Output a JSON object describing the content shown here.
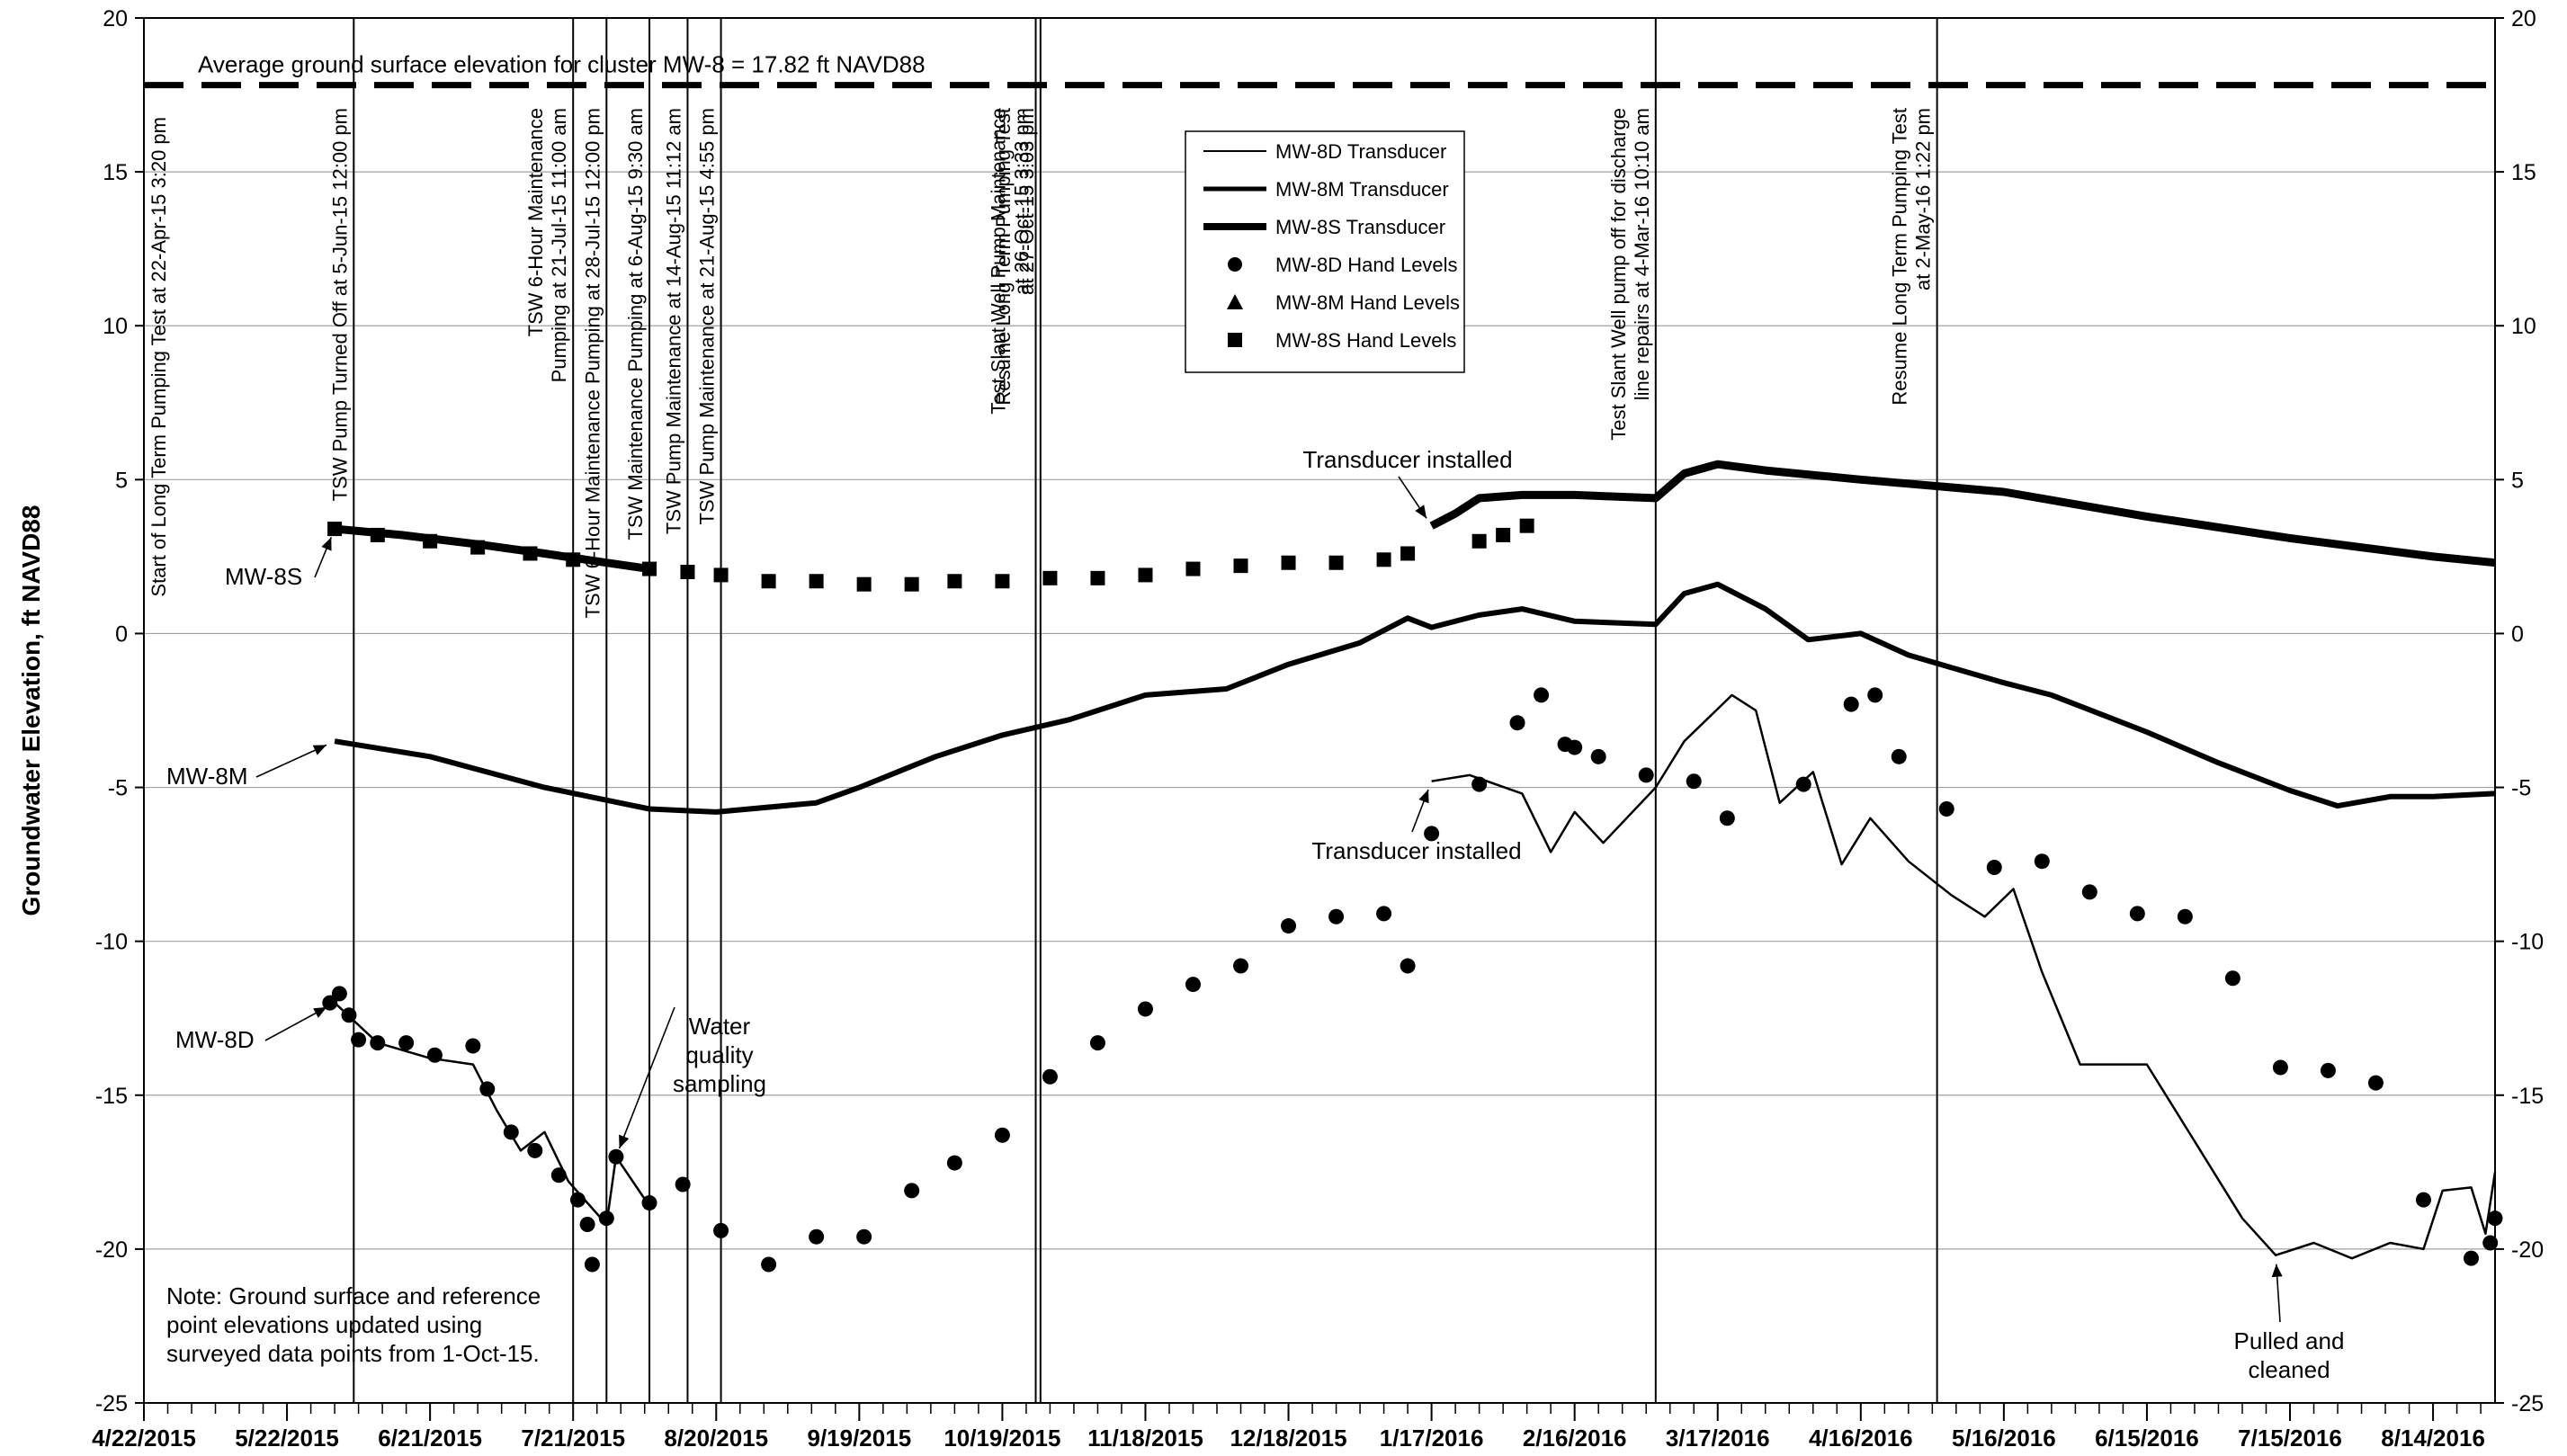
{
  "chart_data": {
    "type": "line",
    "ylabel": "Groundwater Elevation, ft NAVD88",
    "ylim": [
      -25,
      20
    ],
    "yticks": [
      20,
      15,
      10,
      5,
      0,
      -5,
      -10,
      -15,
      -20,
      -25
    ],
    "xlim": [
      "2015-04-22",
      "2016-08-27"
    ],
    "x_tick_labels": [
      "4/22/2015",
      "5/22/2015",
      "6/21/2015",
      "7/21/2015",
      "8/20/2015",
      "9/19/2015",
      "10/19/2015",
      "11/18/2015",
      "12/18/2015",
      "1/17/2016",
      "2/16/2016",
      "3/17/2016",
      "4/16/2016",
      "5/16/2016",
      "6/15/2016",
      "7/15/2016",
      "8/14/2016"
    ],
    "grid": "horizontal",
    "legend_position": "top-center",
    "ground_surface": {
      "value": 17.82,
      "label": "Average ground surface elevation for cluster MW-8 = 17.82 ft NAVD88"
    },
    "events": [
      {
        "date": "2015-04-22",
        "label": "Start of Long Term Pumping Test at 22-Apr-15 3:20 pm",
        "line": false
      },
      {
        "date": "2015-06-05",
        "label": "TSW Pump Turned Off at 5-Jun-15 12:00 pm",
        "line": true
      },
      {
        "date": "2015-07-21",
        "label": "TSW 6-Hour Maintenance|Pumping at 21-Jul-15 11:00 am",
        "line": true
      },
      {
        "date": "2015-07-28",
        "label": "TSW 6-Hour Maintenance Pumping at 28-Jul-15 12:00 pm",
        "line": true
      },
      {
        "date": "2015-08-06",
        "label": "TSW Maintenance Pumping at 6-Aug-15 9:30 am",
        "line": true
      },
      {
        "date": "2015-08-14",
        "label": "TSW Pump Maintenance at 14-Aug-15 11:12 am",
        "line": true
      },
      {
        "date": "2015-08-21",
        "label": "TSW Pump Maintenance at 21-Aug-15 4:55 pm",
        "line": true
      },
      {
        "date": "2015-10-26",
        "label": "Test Slant Well Pump Maintenance|at 26-Oct-15 3:33 pm",
        "line": true
      },
      {
        "date": "2015-10-27",
        "label": "Resume Long Term Pumping Test|at 27-Oct-15 3:03 pm",
        "line": true
      },
      {
        "date": "2016-03-04",
        "label": "Test Slant Well pump off for discharge|line repairs at 4-Mar-16 10:10 am",
        "line": true
      },
      {
        "date": "2016-05-02",
        "label": "Resume Long Term Pumping Test|at 2-May-16 1:22 pm",
        "line": true
      }
    ],
    "legend": [
      {
        "name": "MW-8D Transducer",
        "marker": "thin-line"
      },
      {
        "name": "MW-8M Transducer",
        "marker": "medium-line"
      },
      {
        "name": "MW-8S Transducer",
        "marker": "thick-line"
      },
      {
        "name": "MW-8D Hand Levels",
        "marker": "circle"
      },
      {
        "name": "MW-8M Hand Levels",
        "marker": "triangle"
      },
      {
        "name": "MW-8S Hand Levels",
        "marker": "square"
      }
    ],
    "series": [
      {
        "name": "MW-8S Transducer",
        "style": "thick-line",
        "segments": [
          [
            [
              "2015-06-01",
              3.4
            ],
            [
              "2015-06-15",
              3.2
            ],
            [
              "2015-07-01",
              2.9
            ],
            [
              "2015-07-15",
              2.6
            ],
            [
              "2015-07-28",
              2.3
            ],
            [
              "2015-08-06",
              2.1
            ]
          ],
          [
            [
              "2016-01-17",
              3.5
            ],
            [
              "2016-01-22",
              3.9
            ],
            [
              "2016-01-27",
              4.4
            ],
            [
              "2016-02-05",
              4.5
            ],
            [
              "2016-02-16",
              4.5
            ],
            [
              "2016-03-04",
              4.4
            ],
            [
              "2016-03-10",
              5.2
            ],
            [
              "2016-03-17",
              5.5
            ],
            [
              "2016-03-27",
              5.3
            ],
            [
              "2016-04-16",
              5.0
            ],
            [
              "2016-05-16",
              4.6
            ],
            [
              "2016-06-15",
              3.8
            ],
            [
              "2016-07-15",
              3.1
            ],
            [
              "2016-08-14",
              2.5
            ],
            [
              "2016-08-27",
              2.3
            ]
          ]
        ]
      },
      {
        "name": "MW-8M Transducer",
        "style": "medium-line",
        "segments": [
          [
            [
              "2015-06-01",
              -3.5
            ],
            [
              "2015-06-21",
              -4.0
            ],
            [
              "2015-07-15",
              -5.0
            ],
            [
              "2015-08-06",
              -5.7
            ],
            [
              "2015-08-20",
              -5.8
            ],
            [
              "2015-09-10",
              -5.5
            ],
            [
              "2015-09-19",
              -5.0
            ],
            [
              "2015-10-05",
              -4.0
            ],
            [
              "2015-10-19",
              -3.3
            ],
            [
              "2015-11-02",
              -2.8
            ],
            [
              "2015-11-18",
              -2.0
            ],
            [
              "2015-12-05",
              -1.8
            ],
            [
              "2015-12-18",
              -1.0
            ],
            [
              "2016-01-02",
              -0.3
            ],
            [
              "2016-01-12",
              0.5
            ],
            [
              "2016-01-17",
              0.2
            ],
            [
              "2016-01-27",
              0.6
            ],
            [
              "2016-02-05",
              0.8
            ],
            [
              "2016-02-16",
              0.4
            ],
            [
              "2016-03-04",
              0.3
            ],
            [
              "2016-03-10",
              1.3
            ],
            [
              "2016-03-17",
              1.6
            ],
            [
              "2016-03-27",
              0.8
            ],
            [
              "2016-04-05",
              -0.2
            ],
            [
              "2016-04-16",
              0.0
            ],
            [
              "2016-04-26",
              -0.7
            ],
            [
              "2016-05-16",
              -1.6
            ],
            [
              "2016-05-26",
              -2.0
            ],
            [
              "2016-06-15",
              -3.2
            ],
            [
              "2016-06-30",
              -4.2
            ],
            [
              "2016-07-15",
              -5.1
            ],
            [
              "2016-07-25",
              -5.6
            ],
            [
              "2016-08-05",
              -5.3
            ],
            [
              "2016-08-14",
              -5.3
            ],
            [
              "2016-08-27",
              -5.2
            ]
          ]
        ]
      },
      {
        "name": "MW-8D Transducer",
        "style": "thin-line",
        "segments": [
          [
            [
              "2015-06-01",
              -12.0
            ],
            [
              "2015-06-10",
              -13.3
            ],
            [
              "2015-06-21",
              -13.8
            ],
            [
              "2015-06-30",
              -14.0
            ],
            [
              "2015-07-05",
              -15.5
            ],
            [
              "2015-07-10",
              -16.8
            ],
            [
              "2015-07-15",
              -16.2
            ],
            [
              "2015-07-20",
              -17.8
            ],
            [
              "2015-07-28",
              -19.2
            ],
            [
              "2015-07-30",
              -17.0
            ],
            [
              "2015-08-06",
              -18.6
            ]
          ],
          [
            [
              "2016-01-17",
              -4.8
            ],
            [
              "2016-01-25",
              -4.6
            ],
            [
              "2016-02-05",
              -5.2
            ],
            [
              "2016-02-11",
              -7.1
            ],
            [
              "2016-02-16",
              -5.8
            ],
            [
              "2016-02-22",
              -6.8
            ],
            [
              "2016-03-04",
              -5.0
            ],
            [
              "2016-03-10",
              -3.5
            ],
            [
              "2016-03-20",
              -2.0
            ],
            [
              "2016-03-25",
              -2.5
            ],
            [
              "2016-03-30",
              -5.5
            ],
            [
              "2016-04-06",
              -4.5
            ],
            [
              "2016-04-12",
              -7.5
            ],
            [
              "2016-04-18",
              -6.0
            ],
            [
              "2016-04-26",
              -7.4
            ],
            [
              "2016-05-05",
              -8.5
            ],
            [
              "2016-05-12",
              -9.2
            ],
            [
              "2016-05-18",
              -8.3
            ],
            [
              "2016-05-24",
              -11.0
            ],
            [
              "2016-06-01",
              -14.0
            ],
            [
              "2016-06-15",
              -14.0
            ],
            [
              "2016-06-25",
              -16.5
            ],
            [
              "2016-07-05",
              -19.0
            ],
            [
              "2016-07-12",
              -20.2
            ],
            [
              "2016-07-20",
              -19.8
            ],
            [
              "2016-07-28",
              -20.3
            ],
            [
              "2016-08-05",
              -19.8
            ],
            [
              "2016-08-12",
              -20.0
            ],
            [
              "2016-08-16",
              -18.1
            ],
            [
              "2016-08-22",
              -18.0
            ],
            [
              "2016-08-25",
              -19.5
            ],
            [
              "2016-08-27",
              -17.5
            ]
          ]
        ]
      },
      {
        "name": "MW-8D Hand Levels",
        "marker": "circle",
        "points": [
          [
            "2015-05-31",
            -12.0
          ],
          [
            "2015-06-02",
            -11.7
          ],
          [
            "2015-06-04",
            -12.4
          ],
          [
            "2015-06-06",
            -13.2
          ],
          [
            "2015-06-10",
            -13.3
          ],
          [
            "2015-06-16",
            -13.3
          ],
          [
            "2015-06-22",
            -13.7
          ],
          [
            "2015-06-30",
            -13.4
          ],
          [
            "2015-07-03",
            -14.8
          ],
          [
            "2015-07-08",
            -16.2
          ],
          [
            "2015-07-13",
            -16.8
          ],
          [
            "2015-07-18",
            -17.6
          ],
          [
            "2015-07-22",
            -18.4
          ],
          [
            "2015-07-24",
            -19.2
          ],
          [
            "2015-07-25",
            -20.5
          ],
          [
            "2015-07-28",
            -19.0
          ],
          [
            "2015-07-30",
            -17.0
          ],
          [
            "2015-08-06",
            -18.5
          ],
          [
            "2015-08-13",
            -17.9
          ],
          [
            "2015-08-21",
            -19.4
          ],
          [
            "2015-08-31",
            -20.5
          ],
          [
            "2015-09-10",
            -19.6
          ],
          [
            "2015-09-20",
            -19.6
          ],
          [
            "2015-09-30",
            -18.1
          ],
          [
            "2015-10-09",
            -17.2
          ],
          [
            "2015-10-19",
            -16.3
          ],
          [
            "2015-10-29",
            -14.4
          ],
          [
            "2015-11-08",
            -13.3
          ],
          [
            "2015-11-18",
            -12.2
          ],
          [
            "2015-11-28",
            -11.4
          ],
          [
            "2015-12-08",
            -10.8
          ],
          [
            "2015-12-18",
            -9.5
          ],
          [
            "2015-12-28",
            -9.2
          ],
          [
            "2016-01-07",
            -9.1
          ],
          [
            "2016-01-12",
            -10.8
          ],
          [
            "2016-01-17",
            -6.5
          ],
          [
            "2016-01-27",
            -4.9
          ],
          [
            "2016-02-04",
            -2.9
          ],
          [
            "2016-02-09",
            -2.0
          ],
          [
            "2016-02-14",
            -3.6
          ],
          [
            "2016-02-16",
            -3.7
          ],
          [
            "2016-02-21",
            -4.0
          ],
          [
            "2016-03-02",
            -4.6
          ],
          [
            "2016-03-12",
            -4.8
          ],
          [
            "2016-03-19",
            -6.0
          ],
          [
            "2016-04-04",
            -4.9
          ],
          [
            "2016-04-14",
            -2.3
          ],
          [
            "2016-04-19",
            -2.0
          ],
          [
            "2016-04-24",
            -4.0
          ],
          [
            "2016-05-04",
            -5.7
          ],
          [
            "2016-05-14",
            -7.6
          ],
          [
            "2016-05-24",
            -7.4
          ],
          [
            "2016-06-03",
            -8.4
          ],
          [
            "2016-06-13",
            -9.1
          ],
          [
            "2016-06-23",
            -9.2
          ],
          [
            "2016-07-03",
            -11.2
          ],
          [
            "2016-07-13",
            -14.1
          ],
          [
            "2016-07-23",
            -14.2
          ],
          [
            "2016-08-02",
            -14.6
          ],
          [
            "2016-08-12",
            -18.4
          ],
          [
            "2016-08-22",
            -20.3
          ],
          [
            "2016-08-26",
            -19.8
          ],
          [
            "2016-08-27",
            -19.0
          ]
        ]
      },
      {
        "name": "MW-8S Hand Levels",
        "marker": "square",
        "points": [
          [
            "2015-06-01",
            3.4
          ],
          [
            "2015-06-10",
            3.2
          ],
          [
            "2015-06-21",
            3.0
          ],
          [
            "2015-07-01",
            2.8
          ],
          [
            "2015-07-12",
            2.6
          ],
          [
            "2015-07-21",
            2.4
          ],
          [
            "2015-08-06",
            2.1
          ],
          [
            "2015-08-14",
            2.0
          ],
          [
            "2015-08-21",
            1.9
          ],
          [
            "2015-08-31",
            1.7
          ],
          [
            "2015-09-10",
            1.7
          ],
          [
            "2015-09-20",
            1.6
          ],
          [
            "2015-09-30",
            1.6
          ],
          [
            "2015-10-09",
            1.7
          ],
          [
            "2015-10-19",
            1.7
          ],
          [
            "2015-10-29",
            1.8
          ],
          [
            "2015-11-08",
            1.8
          ],
          [
            "2015-11-18",
            1.9
          ],
          [
            "2015-11-28",
            2.1
          ],
          [
            "2015-12-08",
            2.2
          ],
          [
            "2015-12-18",
            2.3
          ],
          [
            "2015-12-28",
            2.3
          ],
          [
            "2016-01-07",
            2.4
          ],
          [
            "2016-01-12",
            2.6
          ],
          [
            "2016-01-27",
            3.0
          ],
          [
            "2016-02-01",
            3.2
          ],
          [
            "2016-02-06",
            3.5
          ]
        ]
      }
    ],
    "annotations": [
      {
        "text": "MW-8S",
        "arrow_to": [
          "2015-06-01",
          3.4
        ]
      },
      {
        "text": "MW-8M",
        "arrow_to": [
          "2015-06-01",
          -3.5
        ]
      },
      {
        "text": "MW-8D",
        "arrow_to": [
          "2015-06-01",
          -12.0
        ]
      },
      {
        "text": "Water|quality|sampling",
        "arrow_to": [
          "2015-07-30",
          -17.0
        ]
      },
      {
        "text": "Transducer installed",
        "arrow_to": [
          "2016-01-17",
          3.5
        ]
      },
      {
        "text": "Transducer installed",
        "arrow_to": [
          "2016-01-17",
          -4.8
        ]
      },
      {
        "text": "Pulled and|cleaned",
        "arrow_to": [
          "2016-07-12",
          -20.2
        ]
      }
    ],
    "note": "Note: Ground surface and reference|point elevations updated using|surveyed data points from 1-Oct-15."
  }
}
